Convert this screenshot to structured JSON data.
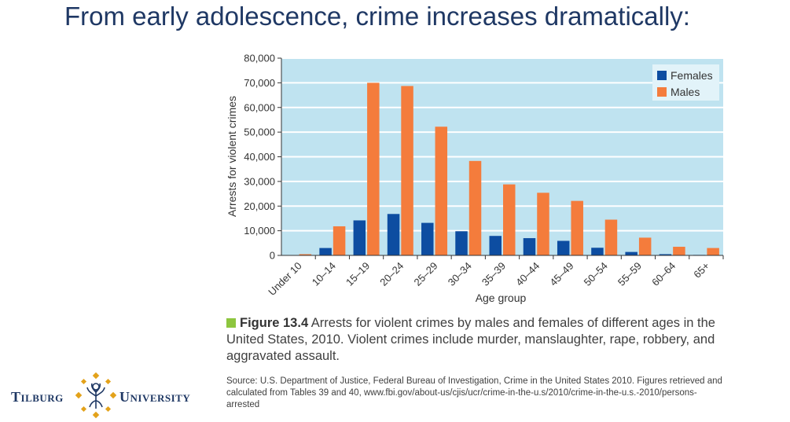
{
  "slide": {
    "title": "From early adolescence, crime increases dramatically:"
  },
  "chart_data": {
    "type": "bar",
    "categories": [
      "Under 10",
      "10–14",
      "15–19",
      "20–24",
      "25–29",
      "30–34",
      "35–39",
      "40–44",
      "45–49",
      "50–54",
      "55–59",
      "60–64",
      "65+"
    ],
    "series": [
      {
        "name": "Females",
        "values": [
          0,
          3000,
          14200,
          16800,
          13200,
          9800,
          7900,
          7000,
          5900,
          3100,
          1400,
          500,
          200
        ]
      },
      {
        "name": "Males",
        "values": [
          500,
          11800,
          70000,
          68700,
          52200,
          38300,
          28800,
          25400,
          22100,
          14500,
          7200,
          3500,
          3000
        ]
      }
    ],
    "xlabel": "Age group",
    "ylabel": "Arrests for violent crimes",
    "ylim": [
      0,
      80000
    ],
    "yticks": [
      0,
      10000,
      20000,
      30000,
      40000,
      50000,
      60000,
      70000,
      80000
    ],
    "ytick_labels": [
      "0",
      "10,000",
      "20,000",
      "30,000",
      "40,000",
      "50,000",
      "60,000",
      "70,000",
      "80,000"
    ],
    "grid": true,
    "legend_position": "top-right",
    "colors": {
      "Females": "#0d4da1",
      "Males": "#f47c3c",
      "plot_bg": "#bfe3f0",
      "grid": "#ffffff"
    }
  },
  "caption": {
    "figure_label": "Figure 13.4",
    "text": " Arrests for violent crimes by males and females of different ages in the United States, 2010. Violent crimes include murder, manslaughter, rape, robbery, and aggravated assault."
  },
  "source": {
    "text": "Source: U.S. Department of Justice, Federal Bureau of Investigation, Crime in the United States 2010. Figures retrieved and calculated from Tables 39 and 40, www.fbi.gov/about-us/cjis/ucr/crime-in-the-u.s/2010/crime-in-the-u.s.-2010/persons-arrested"
  },
  "logo": {
    "word_left": "Tilburg",
    "word_right": "University",
    "colors": {
      "text": "#1f3864",
      "gold": "#e3a21a"
    }
  }
}
